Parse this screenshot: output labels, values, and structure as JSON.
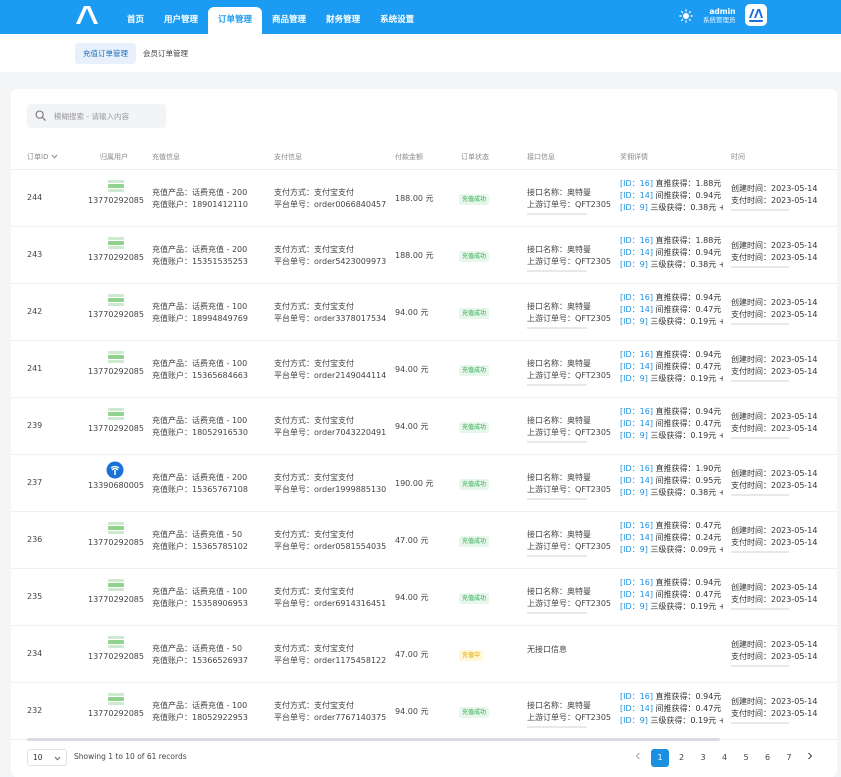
{
  "nav": {
    "items": [
      "首页",
      "用户管理",
      "订单管理",
      "商品管理",
      "财务管理",
      "系统设置"
    ],
    "active_index": 2
  },
  "user": {
    "name": "admin",
    "role": "系统管理员",
    "avatar_text": "MM"
  },
  "subnav": {
    "tabs": [
      "充值订单管理",
      "会员订单管理"
    ],
    "active_index": 0
  },
  "search": {
    "placeholder": "模糊搜索 - 请输入内容"
  },
  "table": {
    "headers": [
      "订单ID",
      "归属用户",
      "充值信息",
      "支付信息",
      "付款金额",
      "订单状态",
      "接口信息",
      "奖佣详情",
      "时间"
    ],
    "rows": [
      {
        "id": "244",
        "user": "13770292085",
        "product": "充值产品：话费充值 - 200",
        "account": "充值账户：18901412110",
        "pay_method": "支付方式：支付宝支付",
        "pay_no": "平台单号：order0066840457",
        "amount": "188.00 元",
        "status": "充值成功",
        "status_type": "ok",
        "iface_name": "接口名称：奥特曼",
        "iface_order": "上游订单号：QFT2305",
        "c1": "直推获得：1.88元 +",
        "c2": "间推获得：0.94元 +",
        "c3": "三级获得：0.38元 +",
        "created": "创建时间：2023-05-14",
        "paid": "支付时间：2023-05-14"
      },
      {
        "id": "243",
        "user": "13770292085",
        "product": "充值产品：话费充值 - 200",
        "account": "充值账户：15351535253",
        "pay_method": "支付方式：支付宝支付",
        "pay_no": "平台单号：order5423009973",
        "amount": "188.00 元",
        "status": "充值成功",
        "status_type": "ok",
        "iface_name": "接口名称：奥特曼",
        "iface_order": "上游订单号：QFT2305",
        "c1": "直推获得：1.88元 +",
        "c2": "间推获得：0.94元 +",
        "c3": "三级获得：0.38元 +",
        "created": "创建时间：2023-05-14",
        "paid": "支付时间：2023-05-14"
      },
      {
        "id": "242",
        "user": "13770292085",
        "product": "充值产品：话费充值 - 100",
        "account": "充值账户：18994849769",
        "pay_method": "支付方式：支付宝支付",
        "pay_no": "平台单号：order3378017534",
        "amount": "94.00 元",
        "status": "充值成功",
        "status_type": "ok",
        "iface_name": "接口名称：奥特曼",
        "iface_order": "上游订单号：QFT2305",
        "c1": "直推获得：0.94元 +",
        "c2": "间推获得：0.47元 +",
        "c3": "三级获得：0.19元 +",
        "created": "创建时间：2023-05-14",
        "paid": "支付时间：2023-05-14"
      },
      {
        "id": "241",
        "user": "13770292085",
        "product": "充值产品：话费充值 - 100",
        "account": "充值账户：15365684663",
        "pay_method": "支付方式：支付宝支付",
        "pay_no": "平台单号：order2149044114",
        "amount": "94.00 元",
        "status": "充值成功",
        "status_type": "ok",
        "iface_name": "接口名称：奥特曼",
        "iface_order": "上游订单号：QFT2305",
        "c1": "直推获得：0.94元 +",
        "c2": "间推获得：0.47元 +",
        "c3": "三级获得：0.19元 +",
        "created": "创建时间：2023-05-14",
        "paid": "支付时间：2023-05-14"
      },
      {
        "id": "239",
        "user": "13770292085",
        "product": "充值产品：话费充值 - 100",
        "account": "充值账户：18052916530",
        "pay_method": "支付方式：支付宝支付",
        "pay_no": "平台单号：order7043220491",
        "amount": "94.00 元",
        "status": "充值成功",
        "status_type": "ok",
        "iface_name": "接口名称：奥特曼",
        "iface_order": "上游订单号：QFT2305",
        "c1": "直推获得：0.94元 +",
        "c2": "间推获得：0.47元 +",
        "c3": "三级获得：0.19元 +",
        "created": "创建时间：2023-05-14",
        "paid": "支付时间：2023-05-14"
      },
      {
        "id": "237",
        "user": "13390680005",
        "product": "充值产品：话费充值 - 200",
        "account": "充值账户：15365767108",
        "pay_method": "支付方式：支付宝支付",
        "pay_no": "平台单号：order1999885130",
        "amount": "190.00 元",
        "status": "充值成功",
        "status_type": "ok",
        "iface_name": "接口名称：奥特曼",
        "iface_order": "上游订单号：QFT2305",
        "c1": "直推获得：1.90元 +",
        "c2": "间推获得：0.95元 +",
        "c3": "三级获得：0.38元 +",
        "created": "创建时间：2023-05-14",
        "paid": "支付时间：2023-05-14"
      },
      {
        "id": "236",
        "user": "13770292085",
        "product": "充值产品：话费充值 - 50",
        "account": "充值账户：15365785102",
        "pay_method": "支付方式：支付宝支付",
        "pay_no": "平台单号：order0581554035",
        "amount": "47.00 元",
        "status": "充值成功",
        "status_type": "ok",
        "iface_name": "接口名称：奥特曼",
        "iface_order": "上游订单号：QFT2305",
        "c1": "直推获得：0.47元 +",
        "c2": "间推获得：0.24元 +",
        "c3": "三级获得：0.09元 +",
        "created": "创建时间：2023-05-14",
        "paid": "支付时间：2023-05-14"
      },
      {
        "id": "235",
        "user": "13770292085",
        "product": "充值产品：话费充值 - 100",
        "account": "充值账户：15358906953",
        "pay_method": "支付方式：支付宝支付",
        "pay_no": "平台单号：order6914316451",
        "amount": "94.00 元",
        "status": "充值成功",
        "status_type": "ok",
        "iface_name": "接口名称：奥特曼",
        "iface_order": "上游订单号：QFT2305",
        "c1": "直推获得：0.94元 +",
        "c2": "间推获得：0.47元 +",
        "c3": "三级获得：0.19元 +",
        "created": "创建时间：2023-05-14",
        "paid": "支付时间：2023-05-14"
      },
      {
        "id": "234",
        "user": "13770292085",
        "product": "充值产品：话费充值 - 50",
        "account": "充值账户：15366526937",
        "pay_method": "支付方式：支付宝支付",
        "pay_no": "平台单号：order1175458122",
        "amount": "47.00 元",
        "status": "充值中",
        "status_type": "ing",
        "iface_none": "无接口信息",
        "created": "创建时间：2023-05-14",
        "paid": "支付时间：2023-05-14"
      },
      {
        "id": "232",
        "user": "13770292085",
        "product": "充值产品：话费充值 - 100",
        "account": "充值账户：18052922953",
        "pay_method": "支付方式：支付宝支付",
        "pay_no": "平台单号：order7767140375",
        "amount": "94.00 元",
        "status": "充值成功",
        "status_type": "ok",
        "iface_name": "接口名称：奥特曼",
        "iface_order": "上游订单号：QFT2305",
        "c1": "直推获得：0.94元 +",
        "c2": "间推获得：0.47元 +",
        "c3": "三级获得：0.19元 +",
        "created": "创建时间：2023-05-14",
        "paid": "支付时间：2023-05-14"
      }
    ],
    "row_icons": [
      "green-card-icon",
      "green-card-icon",
      "green-card-icon",
      "green-card-icon",
      "green-card-icon",
      "telecom-blue-icon",
      "green-card-icon",
      "green-card-icon",
      "green-card-icon",
      "green-card-icon"
    ],
    "commission_ids": [
      "[ID：16]",
      "[ID：14]",
      "[ID：9]"
    ]
  },
  "footer": {
    "page_size": "10",
    "info": "Showing 1 to 10 of 61 records",
    "pages": [
      "1",
      "2",
      "3",
      "4",
      "5",
      "6",
      "7"
    ],
    "active_page": "1"
  },
  "colors": {
    "primary": "#1b9bf2",
    "success": "#2faa4f",
    "warning": "#d9a400",
    "id_link": "#1b8fe0"
  }
}
